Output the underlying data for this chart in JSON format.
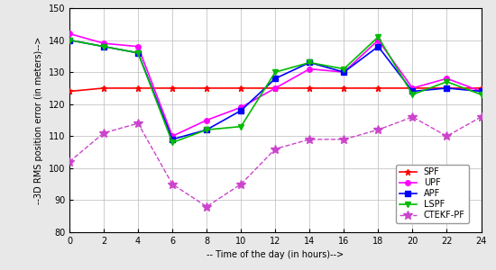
{
  "x": [
    0,
    2,
    4,
    6,
    8,
    10,
    12,
    14,
    16,
    18,
    20,
    22,
    24
  ],
  "SPF": [
    124,
    125,
    125,
    125,
    125,
    125,
    125,
    125,
    125,
    125,
    125,
    125,
    125
  ],
  "UPF": [
    142,
    139,
    138,
    110,
    115,
    119,
    125,
    131,
    130,
    140,
    125,
    128,
    124
  ],
  "APF": [
    140,
    138,
    136,
    109,
    112,
    118,
    128,
    133,
    130,
    138,
    124,
    125,
    124
  ],
  "LSPF": [
    140,
    138,
    136,
    108,
    112,
    113,
    130,
    133,
    131,
    141,
    123,
    127,
    123
  ],
  "CTEKF_PF": [
    102,
    111,
    114,
    95,
    88,
    95,
    106,
    109,
    109,
    112,
    116,
    110,
    116
  ],
  "SPF_color": "#ff0000",
  "UPF_color": "#ff00ff",
  "APF_color": "#0000ff",
  "LSPF_color": "#00bb00",
  "CTEKF_PF_color": "#cc44cc",
  "xlabel": "-- Time of the day (in hours)-->",
  "ylabel": "--3D RMS position error (in meters)-->",
  "xlim": [
    0,
    24
  ],
  "ylim": [
    80,
    150
  ],
  "yticks": [
    80,
    90,
    100,
    110,
    120,
    130,
    140,
    150
  ],
  "xticks": [
    0,
    2,
    4,
    6,
    8,
    10,
    12,
    14,
    16,
    18,
    20,
    22,
    24
  ],
  "bg_color": "#e8e8e8",
  "plot_bg_color": "#ffffff"
}
